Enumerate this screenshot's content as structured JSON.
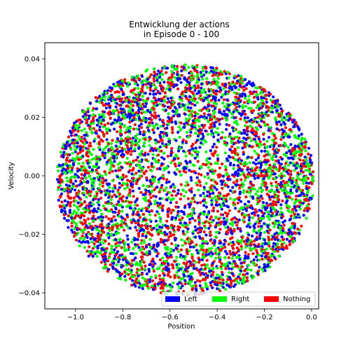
{
  "chart_data": {
    "type": "scatter",
    "title": [
      "Entwicklung der actions",
      "in Episode 0 - 100"
    ],
    "xlabel": "Position",
    "ylabel": "Velocity",
    "xlim": [
      -1.13,
      0.03
    ],
    "ylim": [
      -0.0455,
      0.0455
    ],
    "xticks": [
      -1.0,
      -0.8,
      -0.6,
      -0.4,
      -0.2,
      0.0
    ],
    "xtick_labels": [
      "−1.0",
      "−0.8",
      "−0.6",
      "−0.4",
      "−0.2",
      "0.0"
    ],
    "yticks": [
      -0.04,
      -0.02,
      0.0,
      0.02,
      0.04
    ],
    "ytick_labels": [
      "−0.04",
      "−0.02",
      "0.00",
      "0.02",
      "0.04"
    ],
    "grid": false,
    "legend": "lower-right",
    "cloud": {
      "x_center": -0.535,
      "y_center": -0.0015,
      "x_radius": 0.545,
      "y_radius": 0.0395,
      "points_per_series": 1700
    },
    "series": [
      {
        "name": "Left",
        "color": "#0000ff"
      },
      {
        "name": "Right",
        "color": "#00ff00"
      },
      {
        "name": "Nothing",
        "color": "#ff0000"
      }
    ]
  }
}
